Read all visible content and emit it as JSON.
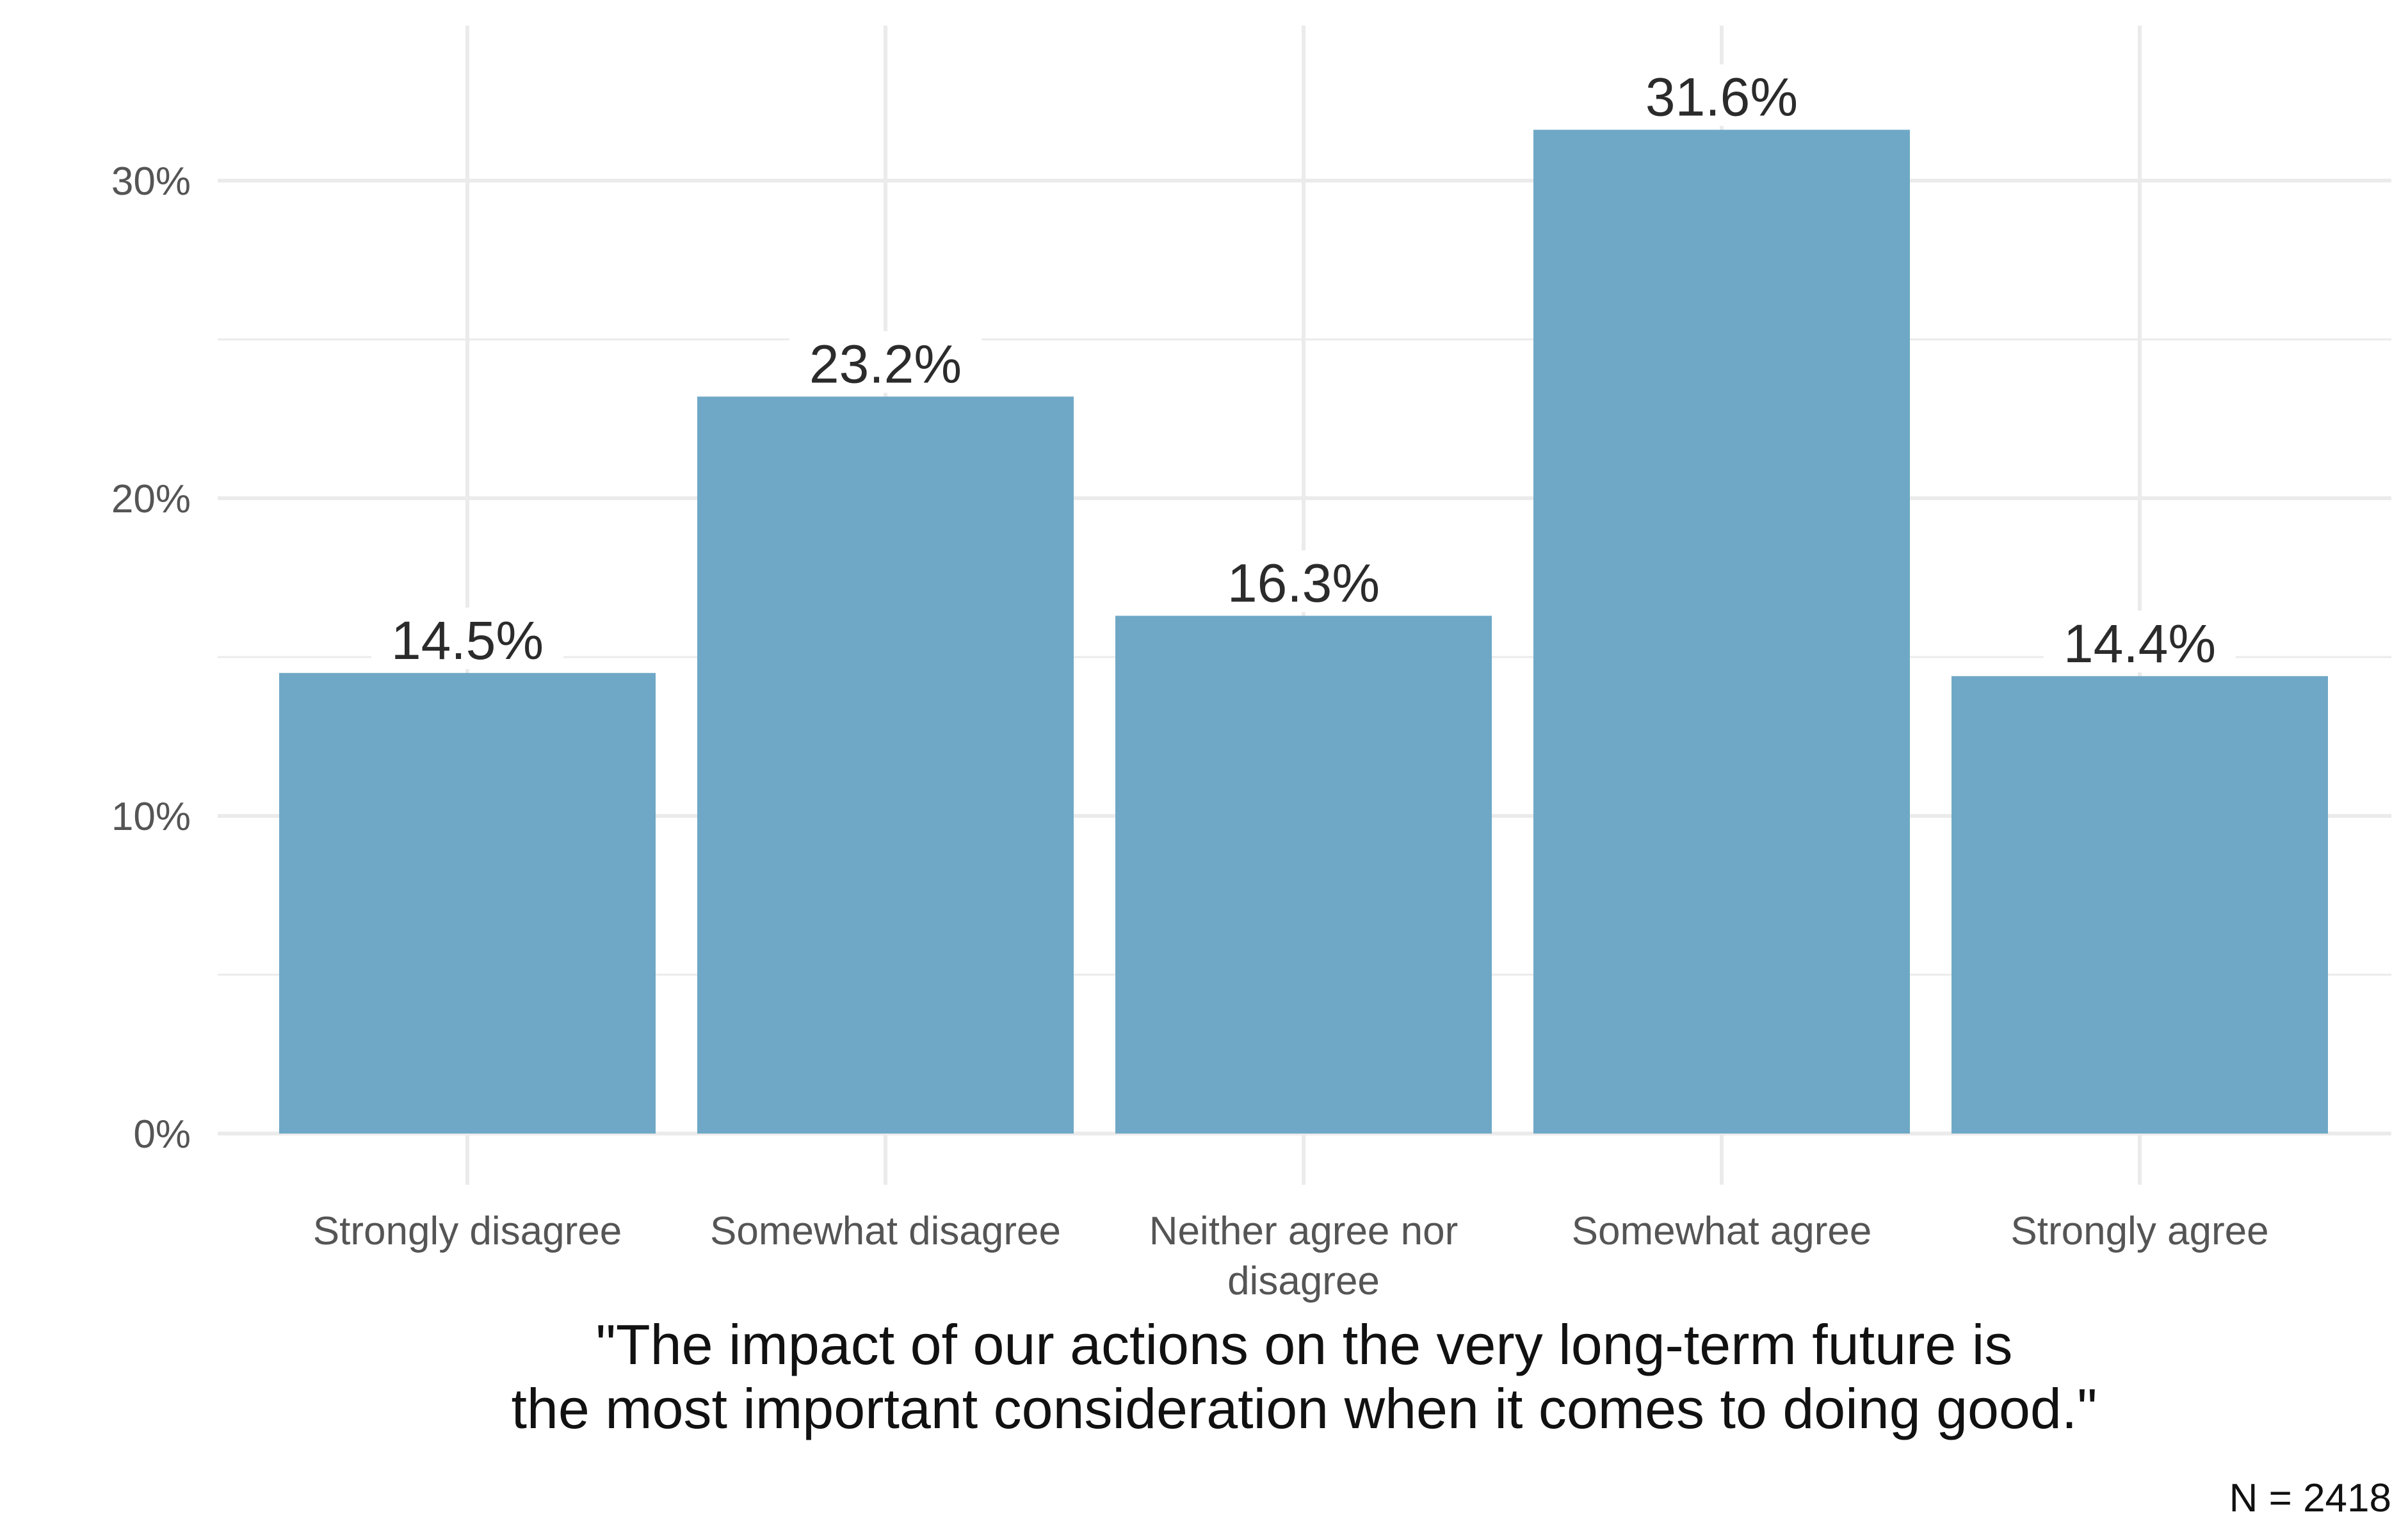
{
  "chart_data": {
    "type": "bar",
    "categories": [
      [
        "Strongly disagree"
      ],
      [
        "Somewhat disagree"
      ],
      [
        "Neither agree nor",
        "disagree"
      ],
      [
        "Somewhat agree"
      ],
      [
        "Strongly agree"
      ]
    ],
    "values": [
      14.5,
      23.2,
      16.3,
      31.6,
      14.4
    ],
    "value_labels": [
      "14.5%",
      "23.2%",
      "16.3%",
      "31.6%",
      "14.4%"
    ],
    "xlabel": [
      "\"The impact of our actions on the very long-term future is",
      "the most important consideration when it comes to doing good.\""
    ],
    "ylabel": "",
    "ylim": [
      0,
      34
    ],
    "yticks": [
      {
        "value": 0,
        "label": "0%"
      },
      {
        "value": 10,
        "label": "10%"
      },
      {
        "value": 20,
        "label": "20%"
      },
      {
        "value": 30,
        "label": "30%"
      }
    ],
    "minor_yticks": [
      5,
      15,
      25
    ],
    "caption": "N = 2418",
    "grid": true,
    "legend": "none",
    "bar_color": "#6fa8c6",
    "grid_color": "#ebebeb"
  }
}
